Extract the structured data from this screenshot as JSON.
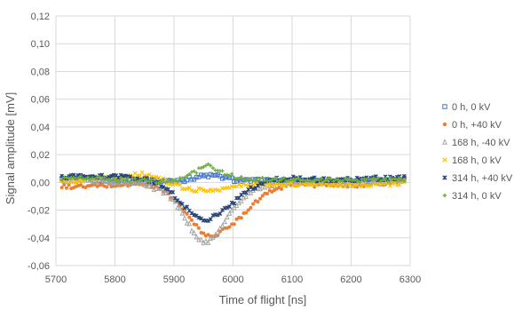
{
  "chart_data": {
    "type": "scatter",
    "title": "",
    "xlabel": "Time of flight [ns]",
    "ylabel": "Signal amplitude [mV]",
    "xlim": [
      5700,
      6300
    ],
    "ylim": [
      -0.06,
      0.12
    ],
    "xticks": [
      5700,
      5800,
      5900,
      6000,
      6100,
      6200,
      6300
    ],
    "xtick_labels": [
      "5700",
      "5800",
      "5900",
      "6000",
      "6100",
      "6200",
      "6300"
    ],
    "yticks": [
      -0.06,
      -0.04,
      -0.02,
      0.0,
      0.02,
      0.04,
      0.06,
      0.08,
      0.1,
      0.12
    ],
    "ytick_labels": [
      "-0,06",
      "-0,04",
      "-0,02",
      "0,00",
      "0,02",
      "0,04",
      "0,06",
      "0,08",
      "0,10",
      "0,12"
    ],
    "grid": "horizontal and vertical",
    "legend_position": "right",
    "series": [
      {
        "name": "0 h, 0 kV",
        "marker": "square",
        "color": "#4472C4",
        "points": [
          [
            5710,
            0.002
          ],
          [
            5750,
            0.003
          ],
          [
            5800,
            0.001
          ],
          [
            5850,
            0.001
          ],
          [
            5880,
            0.001
          ],
          [
            5900,
            0.001
          ],
          [
            5920,
            0.002
          ],
          [
            5940,
            0.004
          ],
          [
            5960,
            0.005
          ],
          [
            5980,
            0.004
          ],
          [
            6000,
            0.002
          ],
          [
            6020,
            0.001
          ],
          [
            6050,
            0.001
          ],
          [
            6100,
            0.001
          ],
          [
            6150,
            0.001
          ],
          [
            6200,
            0.001
          ],
          [
            6250,
            0.001
          ],
          [
            6290,
            0.002
          ]
        ]
      },
      {
        "name": "0 h, +40 kV",
        "marker": "circle",
        "color": "#ED7D31",
        "points": [
          [
            5710,
            -0.003
          ],
          [
            5750,
            -0.003
          ],
          [
            5800,
            -0.002
          ],
          [
            5850,
            -0.001
          ],
          [
            5880,
            -0.005
          ],
          [
            5900,
            -0.012
          ],
          [
            5920,
            -0.022
          ],
          [
            5940,
            -0.033
          ],
          [
            5955,
            -0.039
          ],
          [
            5970,
            -0.038
          ],
          [
            5990,
            -0.033
          ],
          [
            6010,
            -0.026
          ],
          [
            6030,
            -0.017
          ],
          [
            6050,
            -0.01
          ],
          [
            6070,
            -0.005
          ],
          [
            6100,
            -0.001
          ],
          [
            6150,
            -0.002
          ],
          [
            6200,
            -0.002
          ],
          [
            6250,
            -0.001
          ],
          [
            6290,
            0.001
          ]
        ]
      },
      {
        "name": "168 h, -40 kV",
        "marker": "triangle",
        "color": "#A5A5A5",
        "points": [
          [
            5710,
            0.001
          ],
          [
            5750,
            0.002
          ],
          [
            5800,
            0.0
          ],
          [
            5850,
            -0.001
          ],
          [
            5890,
            -0.008
          ],
          [
            5910,
            -0.02
          ],
          [
            5930,
            -0.034
          ],
          [
            5945,
            -0.042
          ],
          [
            5955,
            -0.044
          ],
          [
            5965,
            -0.041
          ],
          [
            5975,
            -0.035
          ],
          [
            5990,
            -0.025
          ],
          [
            6010,
            -0.015
          ],
          [
            6030,
            -0.007
          ],
          [
            6060,
            -0.002
          ],
          [
            6100,
            0.0
          ],
          [
            6150,
            0.0
          ],
          [
            6200,
            -0.001
          ],
          [
            6250,
            0.0
          ],
          [
            6290,
            0.001
          ]
        ]
      },
      {
        "name": "168 h, 0 kV",
        "marker": "x",
        "color": "#FFC000",
        "points": [
          [
            5710,
            0.0
          ],
          [
            5750,
            0.002
          ],
          [
            5800,
            0.004
          ],
          [
            5850,
            0.006
          ],
          [
            5880,
            0.002
          ],
          [
            5900,
            -0.002
          ],
          [
            5930,
            -0.005
          ],
          [
            5960,
            -0.006
          ],
          [
            5990,
            -0.004
          ],
          [
            6020,
            -0.002
          ],
          [
            6050,
            -0.001
          ],
          [
            6100,
            -0.001
          ],
          [
            6150,
            -0.001
          ],
          [
            6200,
            -0.002
          ],
          [
            6250,
            -0.001
          ],
          [
            6290,
            -0.001
          ]
        ]
      },
      {
        "name": "314 h, +40 kV",
        "marker": "star",
        "color": "#264478",
        "points": [
          [
            5710,
            0.004
          ],
          [
            5750,
            0.004
          ],
          [
            5800,
            0.004
          ],
          [
            5850,
            0.003
          ],
          [
            5880,
            -0.002
          ],
          [
            5900,
            -0.009
          ],
          [
            5920,
            -0.018
          ],
          [
            5940,
            -0.025
          ],
          [
            5955,
            -0.027
          ],
          [
            5970,
            -0.024
          ],
          [
            5990,
            -0.018
          ],
          [
            6010,
            -0.011
          ],
          [
            6030,
            -0.005
          ],
          [
            6050,
            -0.001
          ],
          [
            6070,
            0.002
          ],
          [
            6100,
            0.003
          ],
          [
            6150,
            0.002
          ],
          [
            6200,
            0.002
          ],
          [
            6250,
            0.003
          ],
          [
            6290,
            0.003
          ]
        ]
      },
      {
        "name": "314 h, 0 kV",
        "marker": "plus",
        "color": "#70AD47",
        "points": [
          [
            5710,
            0.003
          ],
          [
            5750,
            0.003
          ],
          [
            5800,
            0.002
          ],
          [
            5850,
            0.001
          ],
          [
            5890,
            0.001
          ],
          [
            5910,
            0.002
          ],
          [
            5930,
            0.006
          ],
          [
            5950,
            0.011
          ],
          [
            5960,
            0.012
          ],
          [
            5970,
            0.01
          ],
          [
            5990,
            0.006
          ],
          [
            6010,
            0.003
          ],
          [
            6030,
            0.002
          ],
          [
            6060,
            0.002
          ],
          [
            6100,
            0.002
          ],
          [
            6150,
            0.002
          ],
          [
            6200,
            0.001
          ],
          [
            6250,
            0.002
          ],
          [
            6290,
            0.002
          ]
        ]
      }
    ]
  }
}
